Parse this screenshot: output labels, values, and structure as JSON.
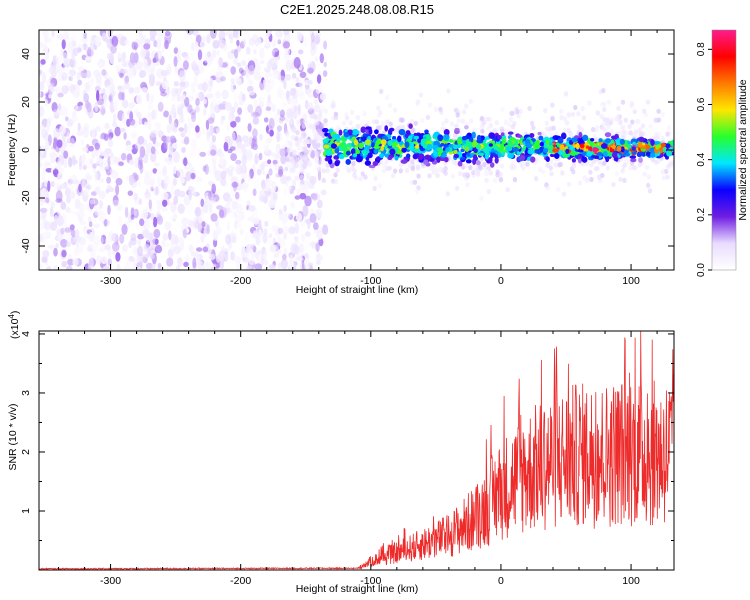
{
  "title": "C2E1.2025.248.08.08.R15",
  "chart_data": [
    {
      "type": "heatmap",
      "title": "C2E1.2025.248.08.08.R15",
      "xlabel": "Height of straight line (km)",
      "ylabel": "Frequency (Hz)",
      "xlim": [
        -355,
        133
      ],
      "ylim": [
        -50,
        50
      ],
      "x_ticks": [
        -300,
        -200,
        -100,
        0,
        100
      ],
      "x_tick_labels": [
        "-300",
        "-200",
        "-100",
        "0",
        "100"
      ],
      "y_ticks": [
        -40,
        -20,
        0,
        20,
        40
      ],
      "y_tick_labels": [
        "-40",
        "-20",
        "0",
        "20",
        "40"
      ],
      "grid": false,
      "colorbar": {
        "label": "Normalized spectral amplitude",
        "range": [
          0.0,
          0.87
        ],
        "ticks": [
          0.0,
          0.2,
          0.4,
          0.6,
          0.8
        ],
        "tick_labels": [
          "0.0",
          "0.2",
          "0.4",
          "0.6",
          "0.8"
        ],
        "colors": [
          "#ffffff",
          "#e9dcff",
          "#6f1ee3",
          "#0a00ff",
          "#00e8ff",
          "#27ff2b",
          "#ffe600",
          "#ff7a00",
          "#ff0000",
          "#ff1d8f"
        ]
      },
      "regions": [
        {
          "x_range": [
            -355,
            -135
          ],
          "frequency_range": [
            -50,
            50
          ],
          "amplitude": [
            0.02,
            0.12
          ]
        },
        {
          "x_range": [
            -135,
            133
          ],
          "frequency_center": 2,
          "frequency_halfwidth": 7,
          "amplitude": [
            0.1,
            0.85
          ]
        }
      ]
    },
    {
      "type": "line",
      "xlabel": "Height of straight line (km)",
      "ylabel": "SNR (10 * v/v)",
      "y_multiplier_label": "(x10",
      "y_multiplier_exponent": "4",
      "xlim": [
        -355,
        133
      ],
      "ylim": [
        0,
        4.05
      ],
      "x_ticks": [
        -300,
        -200,
        -100,
        0,
        100
      ],
      "x_tick_labels": [
        "-300",
        "-200",
        "-100",
        "0",
        "100"
      ],
      "y_ticks": [
        1,
        2,
        3,
        4
      ],
      "y_tick_labels": [
        "1",
        "2",
        "3",
        "4"
      ],
      "grid": false,
      "line_color": "#ee2b2b",
      "envelope": {
        "x": [
          -355,
          -110,
          -100,
          -80,
          -60,
          -40,
          -20,
          0,
          20,
          40,
          60,
          80,
          100,
          120,
          133
        ],
        "y": [
          0.02,
          0.03,
          0.15,
          0.3,
          0.45,
          0.6,
          0.9,
          1.4,
          1.7,
          1.9,
          2.0,
          2.0,
          2.1,
          2.0,
          2.1
        ]
      }
    }
  ]
}
